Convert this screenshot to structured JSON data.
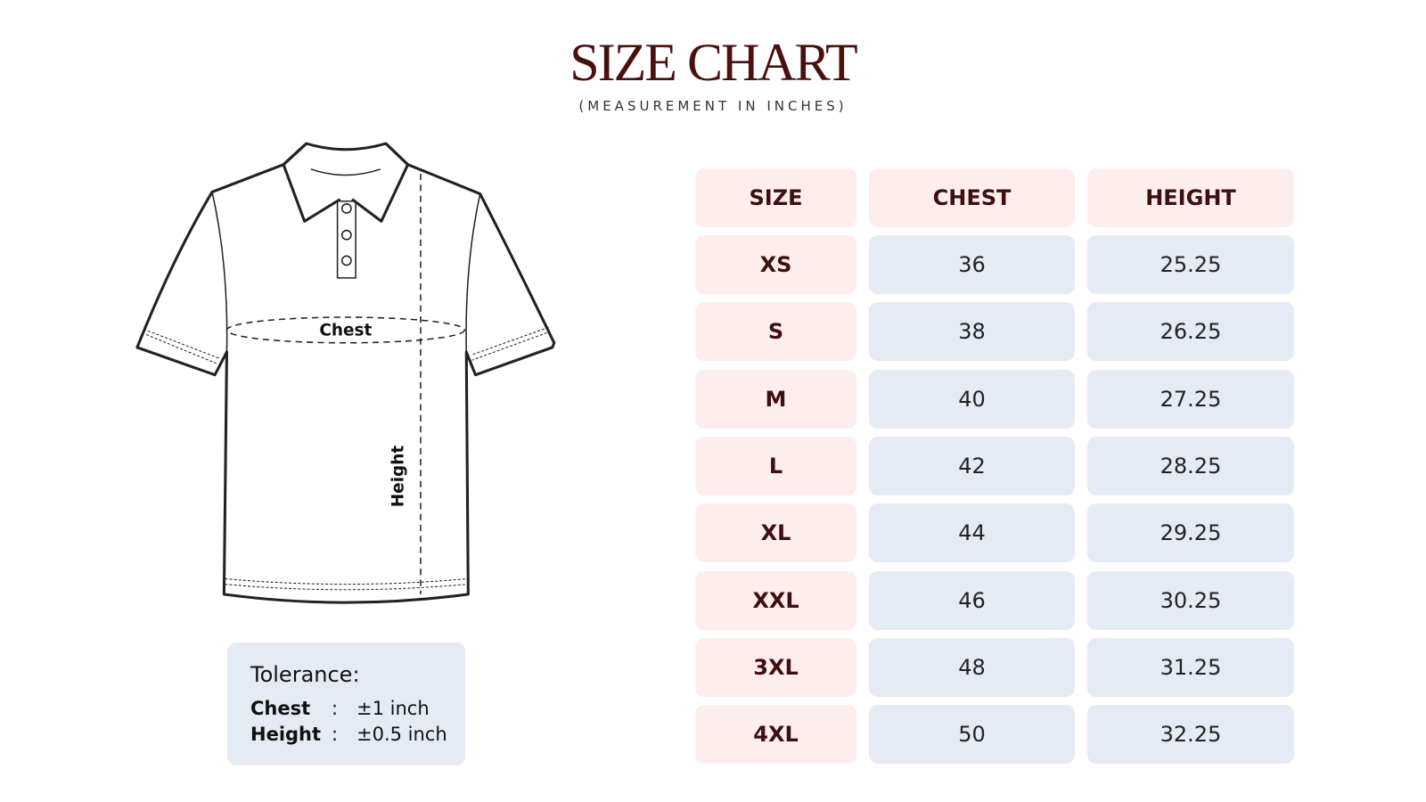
{
  "header": {
    "title": "SIZE CHART",
    "subtitle": "(MEASUREMENT IN INCHES)"
  },
  "diagram": {
    "chest_label": "Chest",
    "height_label": "Height"
  },
  "tolerance": {
    "title": "Tolerance:",
    "rows": [
      [
        "Chest",
        ":",
        "±1 inch"
      ],
      [
        "Height",
        ":",
        "±0.5 inch"
      ]
    ]
  },
  "table": {
    "columns": [
      "SIZE",
      "CHEST",
      "HEIGHT"
    ],
    "rows": [
      [
        "XS",
        "36",
        "25.25"
      ],
      [
        "S",
        "38",
        "26.25"
      ],
      [
        "M",
        "40",
        "27.25"
      ],
      [
        "L",
        "42",
        "28.25"
      ],
      [
        "XL",
        "44",
        "29.25"
      ],
      [
        "XXL",
        "46",
        "30.25"
      ],
      [
        "3XL",
        "48",
        "31.25"
      ],
      [
        "4XL",
        "50",
        "32.25"
      ]
    ]
  }
}
